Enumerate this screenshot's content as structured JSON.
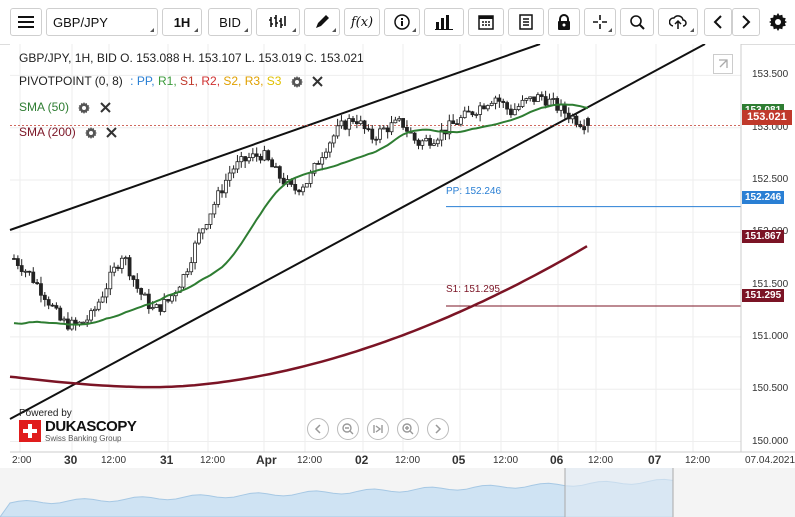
{
  "toolbar": {
    "symbol": "GBP/JPY",
    "timeframe": "1H",
    "price_side": "BID",
    "fx_label": "f(x)",
    "icons": [
      "menu-icon",
      "bar-type-icon",
      "pencil-icon",
      "function-icon",
      "info-icon",
      "volume-icon",
      "calendar-icon",
      "report-icon",
      "lock-icon",
      "crosshair-icon",
      "zoom-icon",
      "upload-icon",
      "chevron-left-icon",
      "chevron-right-icon",
      "gear-icon"
    ]
  },
  "legend": {
    "ohlc": "GBP/JPY, 1H, BID   O. 153.088 H. 153.107 L. 153.019 C. 153.021",
    "pivot_name": "PIVOTPOINT (0, 8)",
    "pivot_sep": ":",
    "pivot_levels": [
      {
        "label": "PP,",
        "color": "#2a7fd4"
      },
      {
        "label": "R1,",
        "color": "#3a9a3a"
      },
      {
        "label": "S1,",
        "color": "#c0392b"
      },
      {
        "label": "R2,",
        "color": "#d03030"
      },
      {
        "label": "S2,",
        "color": "#e0a000"
      },
      {
        "label": "R3,",
        "color": "#e0a000"
      },
      {
        "label": "S3",
        "color": "#e0c000"
      }
    ],
    "sma50": "SMA (50)",
    "sma200": "SMA (200)"
  },
  "price_labels": {
    "current": "153.021",
    "sma50_hidden": "153.081",
    "pp": "152.246",
    "sma200": "151.867",
    "s1": "151.295"
  },
  "line_labels": {
    "pp": "PP: 152.246",
    "s1": "S1: 151.295"
  },
  "brand": {
    "powered": "Powered by",
    "name": "DUKASCOPY",
    "sub": "Swiss Banking Group"
  },
  "colors": {
    "sma50": "#2e7d32",
    "sma200": "#7b1425",
    "pp": "#2a7fd4",
    "s1": "#7b1425",
    "candle_up": "#ffffff",
    "candle_down": "#222222",
    "current": "#c0392b"
  },
  "chart_data": {
    "type": "candlestick",
    "symbol": "GBP/JPY",
    "timeframe": "1H",
    "ylim": [
      149.9,
      153.8
    ],
    "y_ticks": [
      "153.500",
      "153.000",
      "152.500",
      "152.000",
      "151.500",
      "151.000",
      "150.500",
      "150.000"
    ],
    "x_ticks": [
      {
        "label": "2:00",
        "major": false
      },
      {
        "label": "30",
        "major": true
      },
      {
        "label": "12:00",
        "major": false
      },
      {
        "label": "31",
        "major": true
      },
      {
        "label": "12:00",
        "major": false
      },
      {
        "label": "Apr",
        "major": true
      },
      {
        "label": "12:00",
        "major": false
      },
      {
        "label": "02",
        "major": true
      },
      {
        "label": "12:00",
        "major": false
      },
      {
        "label": "05",
        "major": true
      },
      {
        "label": "12:00",
        "major": false
      },
      {
        "label": "06",
        "major": true
      },
      {
        "label": "12:00",
        "major": false
      },
      {
        "label": "07",
        "major": true
      },
      {
        "label": "12:00",
        "major": false
      },
      {
        "label": "07.04.2021",
        "major": false
      }
    ],
    "last": {
      "open": 153.088,
      "high": 153.107,
      "low": 153.019,
      "close": 153.021
    },
    "pivot": {
      "pp": 152.246,
      "s1": 151.295
    },
    "sma200_last": 151.867,
    "close_path": [
      151.75,
      151.6,
      151.4,
      151.15,
      151.1,
      151.2,
      151.5,
      151.8,
      151.45,
      151.25,
      151.35,
      151.6,
      152.0,
      152.3,
      152.6,
      152.7,
      152.75,
      152.55,
      152.4,
      152.5,
      152.8,
      153.0,
      153.1,
      152.9,
      153.0,
      153.05,
      152.85,
      152.9,
      153.0,
      153.1,
      153.2,
      153.3,
      153.15,
      153.25,
      153.3,
      153.2,
      153.1,
      153.02
    ]
  }
}
